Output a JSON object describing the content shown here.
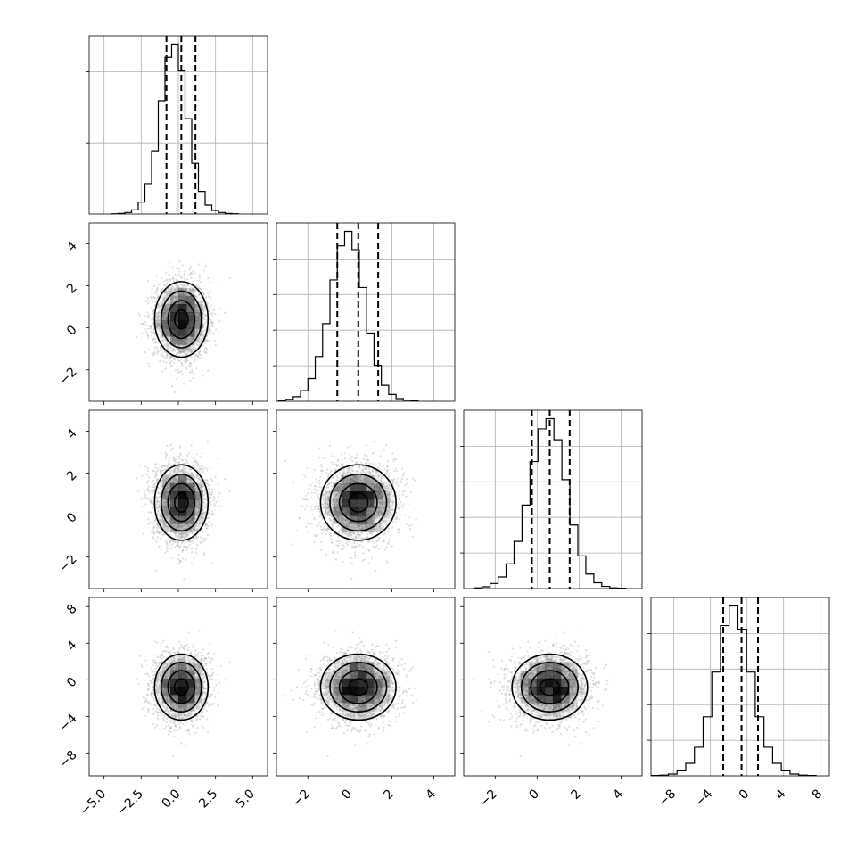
{
  "chart_data": {
    "type": "scatter",
    "layout": "corner-plot",
    "parameters": [
      {
        "range": [
          -6,
          6
        ],
        "ticks": [
          -5.0,
          -2.5,
          0.0,
          2.5,
          5.0
        ],
        "tick_labels": [
          "−5.0",
          "−2.5",
          "0.0",
          "2.5",
          "5.0"
        ]
      },
      {
        "range": [
          -3.5,
          5
        ],
        "ticks": [
          -2,
          0,
          2,
          4
        ],
        "tick_labels": [
          "−2",
          "0",
          "2",
          "4"
        ]
      },
      {
        "range": [
          -3.5,
          5
        ],
        "ticks": [
          -2,
          0,
          2,
          4
        ],
        "tick_labels": [
          "−2",
          "0",
          "2",
          "4"
        ]
      },
      {
        "range": [
          -10.5,
          9
        ],
        "ticks": [
          -8,
          -4,
          0,
          4,
          8
        ],
        "tick_labels": [
          "−8",
          "−4",
          "0",
          "4",
          "8"
        ]
      }
    ],
    "means": [
      0.2,
      0.4,
      0.6,
      -0.8
    ],
    "sigmas": [
      0.9,
      0.9,
      0.9,
      1.8
    ],
    "quantiles_16_50_84": [
      [
        -0.8,
        0.2,
        1.15
      ],
      [
        -0.6,
        0.4,
        1.35
      ],
      [
        -0.25,
        0.6,
        1.55
      ],
      [
        -2.6,
        -0.6,
        1.2
      ]
    ],
    "histograms": [
      {
        "edges_from": -4.5,
        "bin_width": 0.45,
        "counts": [
          1,
          2,
          5,
          14,
          40,
          102,
          212,
          380,
          526,
          570,
          480,
          320,
          170,
          76,
          30,
          12,
          5,
          2,
          1
        ]
      },
      {
        "edges_from": -3.4,
        "bin_width": 0.35,
        "counts": [
          2,
          5,
          12,
          28,
          60,
          118,
          205,
          320,
          410,
          448,
          400,
          300,
          180,
          95,
          42,
          18,
          7,
          3,
          1
        ]
      },
      {
        "edges_from": -3.0,
        "bin_width": 0.38,
        "counts": [
          2,
          5,
          14,
          32,
          68,
          130,
          230,
          350,
          440,
          468,
          410,
          300,
          175,
          90,
          40,
          16,
          6,
          2,
          1
        ]
      },
      {
        "edges_from": -10.5,
        "bin_width": 0.95,
        "counts": [
          1,
          2,
          5,
          14,
          35,
          80,
          165,
          290,
          420,
          475,
          410,
          290,
          165,
          80,
          35,
          14,
          5,
          2,
          1
        ]
      }
    ],
    "histogram_y_ticks": [
      [
        "1",
        "2"
      ],
      [
        "1",
        "2",
        "3",
        "4"
      ],
      [
        "1",
        "2",
        "3",
        "4"
      ],
      [
        "1",
        "2",
        "3",
        "4"
      ]
    ],
    "grid": true,
    "legend": "none",
    "colors": {
      "points": "#b5b5b5",
      "lines": "#000000",
      "density_fill": "#000000"
    }
  }
}
